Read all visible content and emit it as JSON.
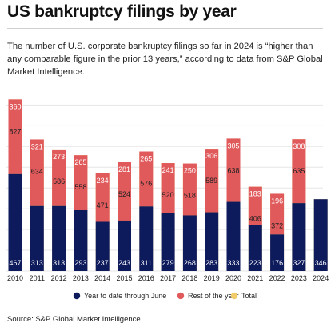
{
  "header": {
    "title": "US bankruptcy filings by year",
    "subtitle": "The number of U.S. corporate bankruptcy filings so far in 2024 is “higher than any comparable figure in the prior 13 years,” according to data from S&P Global Market Intelligence."
  },
  "footer": {
    "source": "Source: S&P Global Market Intelligence"
  },
  "colors": {
    "ytd": "#0d1a5c",
    "rest": "#e05a5c",
    "total": "#f0cc6b",
    "grid": "#e6e6e6"
  },
  "chart_data": {
    "type": "bar",
    "stacked": true,
    "categories": [
      "2010",
      "2011",
      "2012",
      "2013",
      "2014",
      "2015",
      "2016",
      "2017",
      "2018",
      "2019",
      "2020",
      "2021",
      "2022",
      "2023",
      "2024"
    ],
    "series": [
      {
        "name": "Year to date through June",
        "values": [
          467,
          313,
          313,
          293,
          237,
          243,
          311,
          279,
          268,
          283,
          333,
          223,
          176,
          327,
          346
        ]
      },
      {
        "name": "Rest of the year",
        "values": [
          360,
          321,
          273,
          265,
          234,
          281,
          265,
          241,
          250,
          306,
          305,
          183,
          196,
          308,
          null
        ]
      },
      {
        "name": "Total",
        "values": [
          827,
          634,
          586,
          558,
          471,
          524,
          576,
          520,
          518,
          589,
          638,
          406,
          372,
          635,
          null
        ]
      }
    ],
    "ylim": [
      0,
      850
    ],
    "grid": true,
    "legend_position": "bottom"
  }
}
